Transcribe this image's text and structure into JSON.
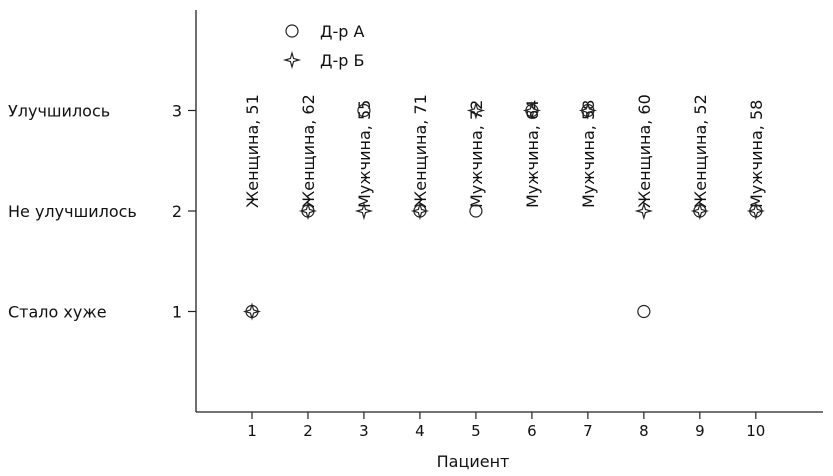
{
  "chart_data": {
    "type": "scatter",
    "title": "",
    "xlabel": "Пациент",
    "ylabel": "",
    "x_ticks": [
      1,
      2,
      3,
      4,
      5,
      6,
      7,
      8,
      9,
      10
    ],
    "xlim": [
      0,
      11.2
    ],
    "y_ticks": [
      1,
      2,
      3
    ],
    "ylim": [
      0,
      4
    ],
    "y_categories": [
      {
        "value": 1,
        "label": "Стало хуже"
      },
      {
        "value": 2,
        "label": "Не улучшилось"
      },
      {
        "value": 3,
        "label": "Улучшилось"
      }
    ],
    "patient_labels": [
      "Женщина, 51",
      "Женщина, 62",
      "Мужчина, 55",
      "Женщина, 71",
      "Мужчина, 72",
      "Мужчина, 64",
      "Мужчина, 58",
      "Женщина, 60",
      "Женщина, 52",
      "Мужчина, 58"
    ],
    "series": [
      {
        "name": "Д-р А",
        "marker": "circle",
        "x": [
          1,
          2,
          3,
          4,
          5,
          6,
          7,
          8,
          9,
          10
        ],
        "y": [
          1,
          2,
          3,
          2,
          2,
          3,
          3,
          1,
          2,
          2
        ]
      },
      {
        "name": "Д-р Б",
        "marker": "star",
        "x": [
          1,
          2,
          3,
          4,
          5,
          6,
          7,
          8,
          9,
          10
        ],
        "y": [
          1,
          2,
          2,
          2,
          3,
          3,
          3,
          2,
          2,
          2
        ]
      }
    ],
    "legend_position": "top-left",
    "grid": false
  },
  "colors": {
    "ink": "#222222",
    "background": "#ffffff"
  }
}
